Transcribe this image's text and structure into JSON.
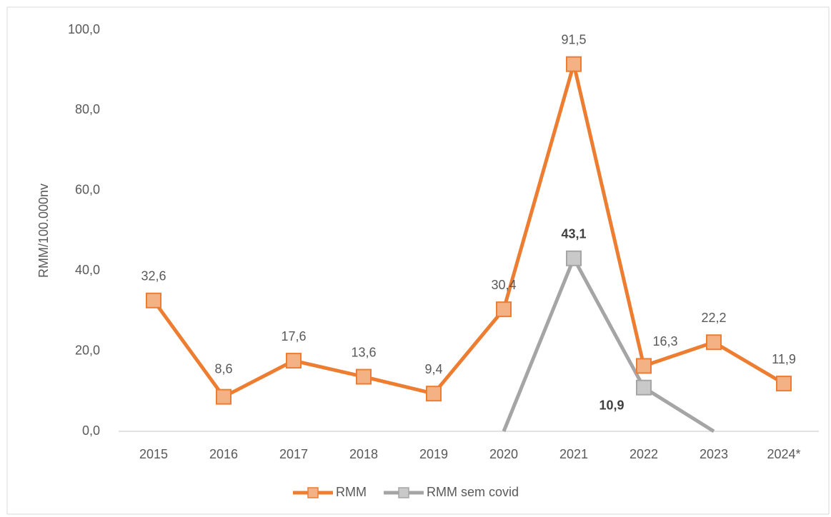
{
  "chart_data": {
    "type": "line",
    "y_label": "RMM/100.000nv",
    "categories": [
      "2015",
      "2016",
      "2017",
      "2018",
      "2019",
      "2020",
      "2021",
      "2022",
      "2023",
      "2024*"
    ],
    "series": [
      {
        "name": "RMM",
        "color": "#ed7d31",
        "marker_color": "#f4b183",
        "values": [
          32.6,
          8.6,
          17.6,
          13.6,
          9.4,
          30.4,
          91.5,
          16.3,
          22.2,
          11.9
        ],
        "value_labels": [
          "32,6",
          "8,6",
          "17,6",
          "13,6",
          "9,4",
          "30,4",
          "91,5",
          "16,3",
          "22,2",
          "11,9"
        ]
      },
      {
        "name": "RMM sem covid",
        "color": "#a5a5a5",
        "marker_color": "#c9c9c9",
        "values": [
          null,
          null,
          null,
          null,
          null,
          0,
          43.1,
          10.9,
          0,
          null
        ],
        "value_labels": [
          null,
          null,
          null,
          null,
          null,
          null,
          "43,1",
          "10,9",
          null,
          null
        ]
      }
    ],
    "ylim": [
      0,
      100
    ],
    "yticks": [
      {
        "value": 0,
        "label": "0,0"
      },
      {
        "value": 20,
        "label": "20,0"
      },
      {
        "value": 40,
        "label": "40,0"
      },
      {
        "value": 60,
        "label": "60,0"
      },
      {
        "value": 80,
        "label": "80,0"
      },
      {
        "value": 100,
        "label": "100,0"
      }
    ],
    "legend": "bottom"
  }
}
